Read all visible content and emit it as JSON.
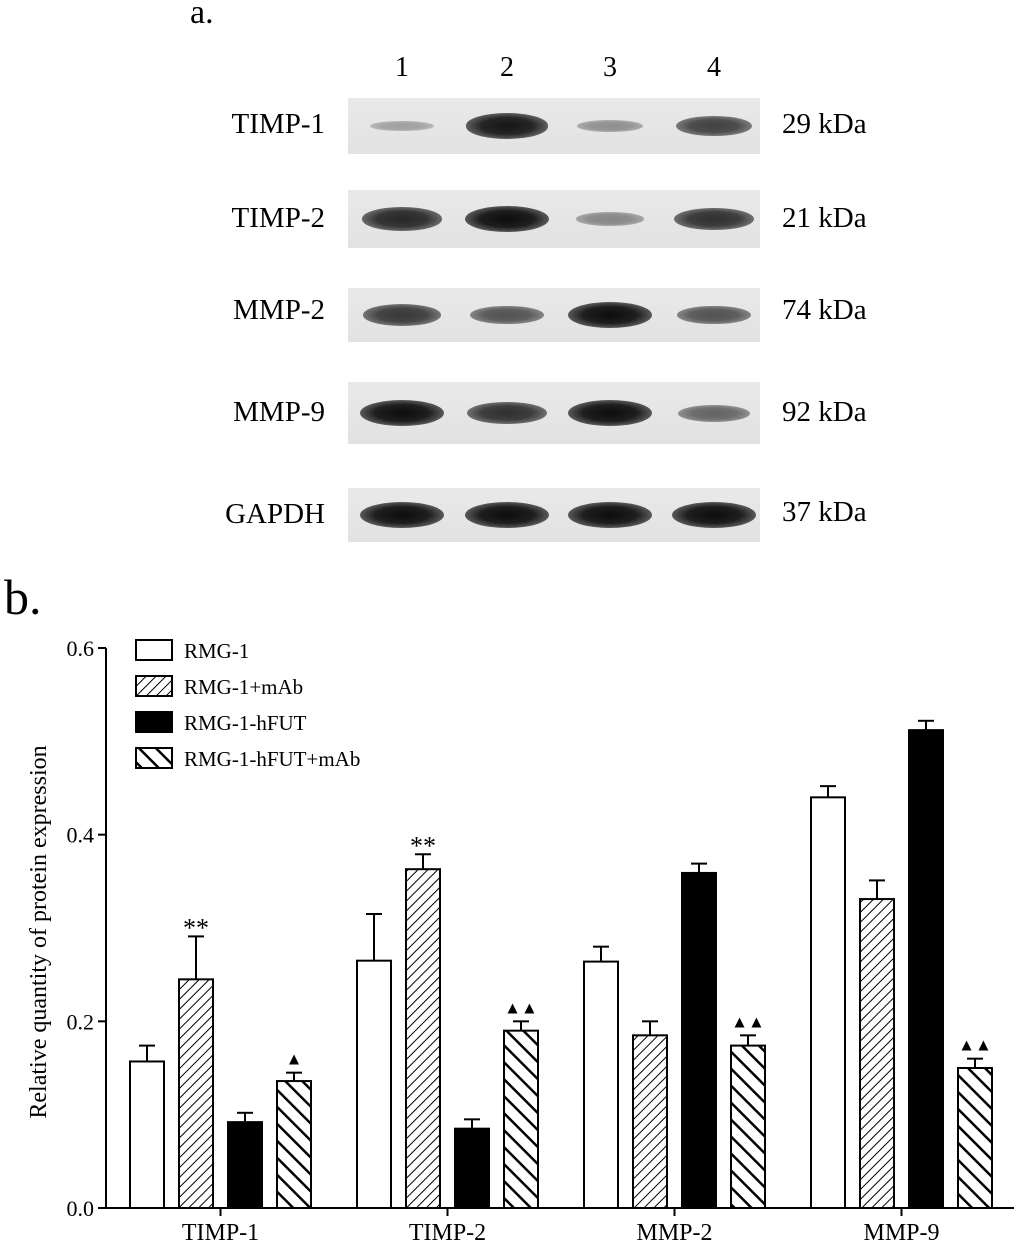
{
  "panel_a": {
    "label": "a.",
    "lanes": [
      "1",
      "2",
      "3",
      "4"
    ],
    "rows": [
      {
        "protein": "TIMP-1",
        "kda": "29 kDa",
        "intensity": [
          0.15,
          0.95,
          0.25,
          0.7
        ]
      },
      {
        "protein": "TIMP-2",
        "kda": "21 kDa",
        "intensity": [
          0.85,
          1.0,
          0.3,
          0.8
        ]
      },
      {
        "protein": "MMP-2",
        "kda": "74 kDa",
        "intensity": [
          0.75,
          0.6,
          1.0,
          0.6
        ]
      },
      {
        "protein": "MMP-9",
        "kda": "92 kDa",
        "intensity": [
          1.0,
          0.8,
          1.0,
          0.5
        ]
      },
      {
        "protein": "GAPDH",
        "kda": "37 kDa",
        "intensity": [
          1.0,
          1.0,
          1.0,
          1.0
        ]
      }
    ]
  },
  "panel_b": {
    "label": "b."
  },
  "chart_data": {
    "type": "bar",
    "categories": [
      "TIMP-1",
      "TIMP-2",
      "MMP-2",
      "MMP-9"
    ],
    "ylabel": "Relative quantity of protein expression",
    "xlabel": "",
    "ylim": [
      0.0,
      0.6
    ],
    "yticks": [
      "0.0",
      "0.2",
      "0.4",
      "0.6"
    ],
    "legend_position": "top-left",
    "series": [
      {
        "name": "RMG-1",
        "pattern": "white",
        "values": [
          0.157,
          0.265,
          0.264,
          0.44
        ],
        "errors": [
          0.017,
          0.05,
          0.016,
          0.012
        ]
      },
      {
        "name": "RMG-1+mAb",
        "pattern": "hatch-fine",
        "values": [
          0.245,
          0.363,
          0.185,
          0.331
        ],
        "errors": [
          0.046,
          0.016,
          0.015,
          0.02
        ]
      },
      {
        "name": "RMG-1-hFUT",
        "pattern": "black",
        "values": [
          0.092,
          0.085,
          0.359,
          0.512
        ],
        "errors": [
          0.01,
          0.01,
          0.01,
          0.01
        ]
      },
      {
        "name": "RMG-1-hFUT+mAb",
        "pattern": "hatch-wide",
        "values": [
          0.136,
          0.19,
          0.174,
          0.15
        ],
        "errors": [
          0.009,
          0.01,
          0.011,
          0.01
        ]
      }
    ],
    "annotations": [
      {
        "category": "TIMP-1",
        "series": "RMG-1+mAb",
        "text": "**"
      },
      {
        "category": "TIMP-2",
        "series": "RMG-1+mAb",
        "text": "**"
      },
      {
        "category": "TIMP-1",
        "series": "RMG-1-hFUT+mAb",
        "text": "▲"
      },
      {
        "category": "TIMP-2",
        "series": "RMG-1-hFUT+mAb",
        "text": "▲▲"
      },
      {
        "category": "MMP-2",
        "series": "RMG-1-hFUT+mAb",
        "text": "▲▲"
      },
      {
        "category": "MMP-9",
        "series": "RMG-1-hFUT+mAb",
        "text": "▲▲"
      }
    ]
  }
}
